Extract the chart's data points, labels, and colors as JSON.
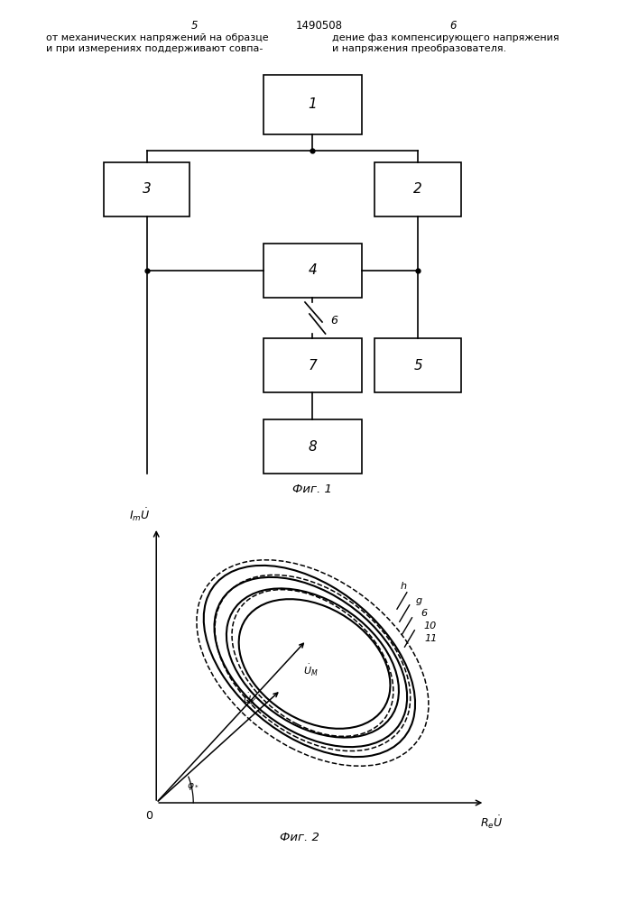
{
  "bg_color": "#ffffff",
  "header_5": "5",
  "header_patent": "1490508",
  "header_6": "6",
  "hdr_l1": "от механических напряжений на образце",
  "hdr_l2": "и при измерениях поддерживают совпа-",
  "hdr_r1": "дение фаз компенсирующего напряжения",
  "hdr_r2": "и напряжения преобразователя.",
  "fig1_label": "Фиг. 1",
  "fig2_label": "Фиг. 2",
  "lw": 1.2,
  "b1": [
    0.49,
    0.884,
    0.155,
    0.065
  ],
  "b2": [
    0.655,
    0.79,
    0.135,
    0.06
  ],
  "b3": [
    0.23,
    0.79,
    0.135,
    0.06
  ],
  "b4": [
    0.49,
    0.7,
    0.155,
    0.06
  ],
  "b5": [
    0.655,
    0.595,
    0.135,
    0.06
  ],
  "b7": [
    0.49,
    0.595,
    0.155,
    0.06
  ],
  "b8": [
    0.49,
    0.505,
    0.155,
    0.06
  ]
}
